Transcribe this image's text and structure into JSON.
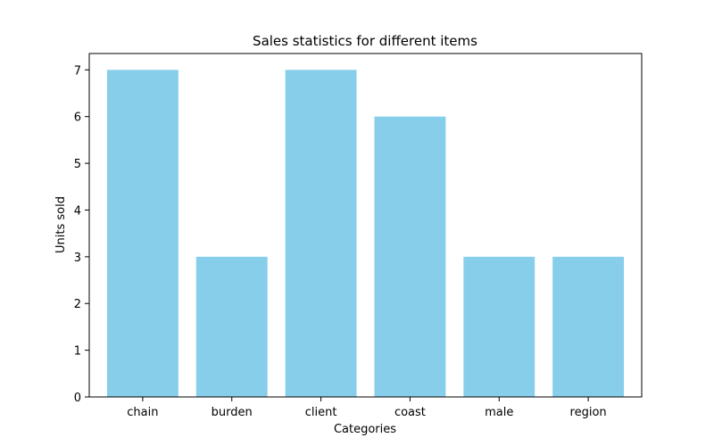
{
  "chart_data": {
    "type": "bar",
    "title": "Sales statistics for different items",
    "xlabel": "Categories",
    "ylabel": "Units sold",
    "categories": [
      "chain",
      "burden",
      "client",
      "coast",
      "male",
      "region"
    ],
    "values": [
      7,
      3,
      7,
      6,
      3,
      3
    ],
    "ylim": [
      0,
      7.35
    ],
    "yticks": [
      0,
      1,
      2,
      3,
      4,
      5,
      6,
      7
    ],
    "bar_color": "#87ceeb",
    "grid": false
  }
}
